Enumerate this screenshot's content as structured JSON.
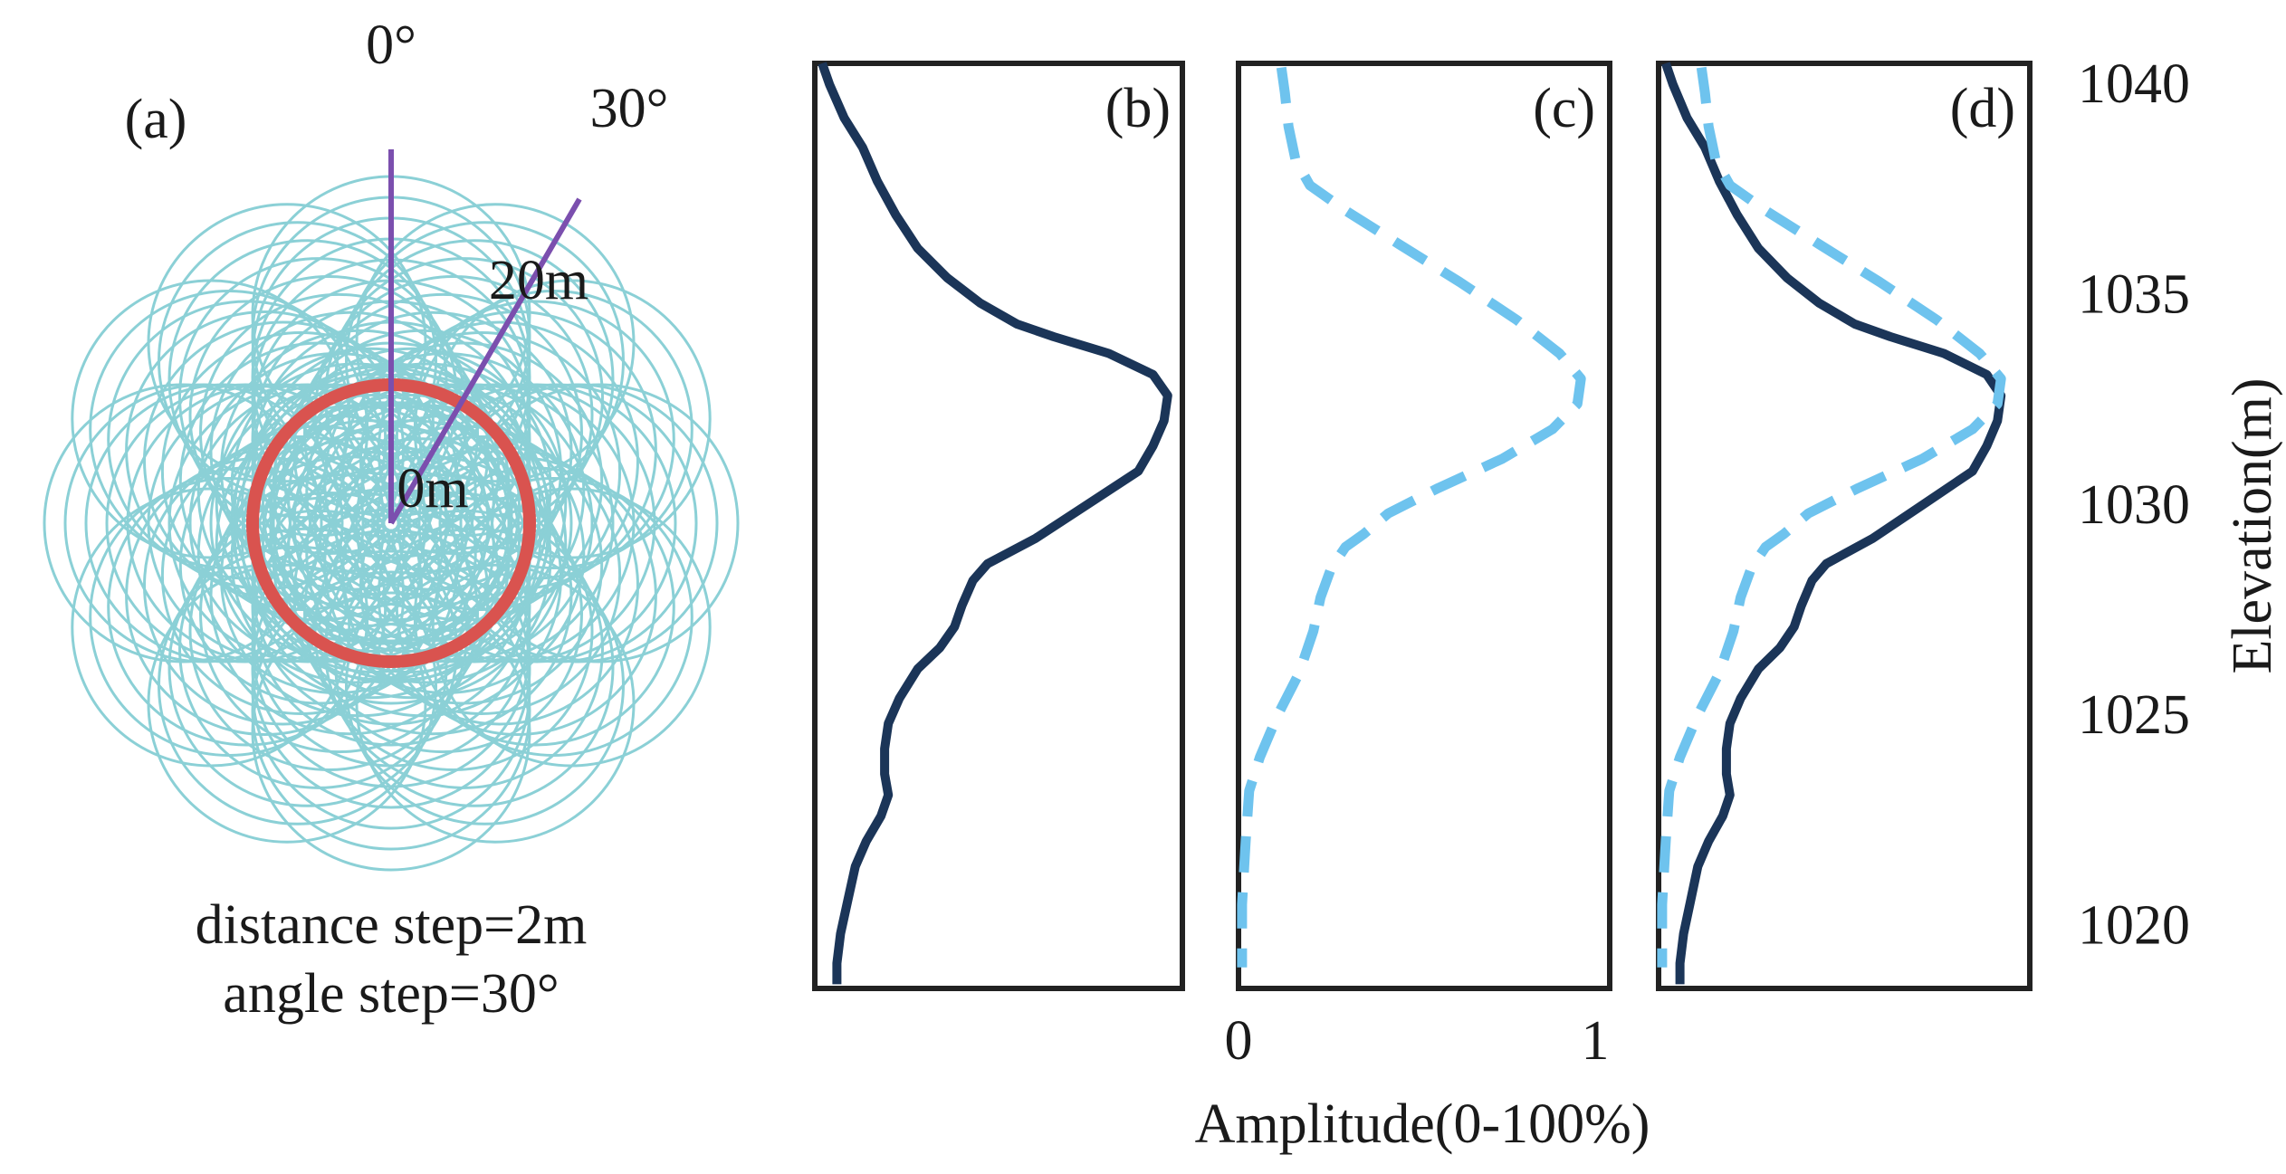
{
  "colors": {
    "background": "#ffffff",
    "circles": "#8bd0d6",
    "red_circle": "#d9534f",
    "ray": "#7b4fae",
    "dark_line": "#1b3558",
    "dashed_line": "#6ec3ee",
    "frame": "#222222",
    "text": "#1a1a1a"
  },
  "panel_a": {
    "label": "(a)",
    "angle_label_0": "0°",
    "angle_label_30": "30°",
    "distance_label_outer": "20m",
    "distance_label_inner": "0m",
    "caption_line1": "distance step=2m",
    "caption_line2": "angle step=30°",
    "max_distance_m": 20,
    "distance_step_m": 2,
    "angle_step_deg": 30,
    "rays_deg": [
      0,
      30
    ]
  },
  "chart_data": [
    {
      "panel": "(b)",
      "type": "line",
      "ylim": [
        1018.5,
        1040.5
      ],
      "xlim": [
        0,
        1
      ],
      "series": [
        {
          "style": "solid",
          "points": [
            [
              0.02,
              1040.5
            ],
            [
              0.04,
              1040.0
            ],
            [
              0.08,
              1039.2
            ],
            [
              0.13,
              1038.5
            ],
            [
              0.17,
              1037.7
            ],
            [
              0.22,
              1036.9
            ],
            [
              0.28,
              1036.1
            ],
            [
              0.36,
              1035.4
            ],
            [
              0.45,
              1034.8
            ],
            [
              0.55,
              1034.3
            ],
            [
              0.65,
              1034.0
            ],
            [
              0.8,
              1033.6
            ],
            [
              0.92,
              1033.1
            ],
            [
              0.96,
              1032.6
            ],
            [
              0.95,
              1032.0
            ],
            [
              0.92,
              1031.4
            ],
            [
              0.88,
              1030.8
            ],
            [
              0.74,
              1030.0
            ],
            [
              0.6,
              1029.2
            ],
            [
              0.47,
              1028.6
            ],
            [
              0.43,
              1028.2
            ],
            [
              0.4,
              1027.6
            ],
            [
              0.38,
              1027.1
            ],
            [
              0.34,
              1026.6
            ],
            [
              0.28,
              1026.1
            ],
            [
              0.23,
              1025.4
            ],
            [
              0.2,
              1024.8
            ],
            [
              0.19,
              1024.2
            ],
            [
              0.19,
              1023.6
            ],
            [
              0.2,
              1023.1
            ],
            [
              0.18,
              1022.6
            ],
            [
              0.14,
              1022.0
            ],
            [
              0.11,
              1021.4
            ],
            [
              0.09,
              1020.6
            ],
            [
              0.07,
              1019.8
            ],
            [
              0.06,
              1019.1
            ],
            [
              0.06,
              1018.6
            ]
          ]
        }
      ]
    },
    {
      "panel": "(c)",
      "type": "line",
      "ylim": [
        1018.5,
        1040.5
      ],
      "xlim": [
        0,
        1
      ],
      "xticks": [
        "0",
        "1"
      ],
      "series": [
        {
          "style": "dashed",
          "points": [
            [
              0.12,
              1040.4
            ],
            [
              0.13,
              1039.8
            ],
            [
              0.14,
              1039.0
            ],
            [
              0.16,
              1038.2
            ],
            [
              0.2,
              1037.6
            ],
            [
              0.3,
              1037.0
            ],
            [
              0.45,
              1036.2
            ],
            [
              0.62,
              1035.3
            ],
            [
              0.78,
              1034.4
            ],
            [
              0.9,
              1033.6
            ],
            [
              0.96,
              1033.0
            ],
            [
              0.95,
              1032.4
            ],
            [
              0.88,
              1031.8
            ],
            [
              0.74,
              1031.1
            ],
            [
              0.56,
              1030.4
            ],
            [
              0.42,
              1029.8
            ],
            [
              0.35,
              1029.3
            ],
            [
              0.3,
              1029.0
            ],
            [
              0.26,
              1028.5
            ],
            [
              0.23,
              1027.8
            ],
            [
              0.21,
              1027.0
            ],
            [
              0.17,
              1026.0
            ],
            [
              0.11,
              1025.0
            ],
            [
              0.06,
              1024.0
            ],
            [
              0.03,
              1023.2
            ],
            [
              0.02,
              1022.0
            ],
            [
              0.01,
              1020.5
            ],
            [
              0.01,
              1019.0
            ]
          ]
        }
      ]
    },
    {
      "panel": "(d)",
      "type": "line",
      "ylim": [
        1018.5,
        1040.5
      ],
      "xlim": [
        0,
        1
      ],
      "ylabel": "Elevation(m)",
      "yticks": [
        1020,
        1025,
        1030,
        1035,
        1040
      ],
      "series": [
        {
          "style": "solid",
          "points": [
            [
              0.02,
              1040.5
            ],
            [
              0.04,
              1040.0
            ],
            [
              0.08,
              1039.2
            ],
            [
              0.13,
              1038.5
            ],
            [
              0.17,
              1037.7
            ],
            [
              0.22,
              1036.9
            ],
            [
              0.28,
              1036.1
            ],
            [
              0.36,
              1035.4
            ],
            [
              0.45,
              1034.8
            ],
            [
              0.55,
              1034.3
            ],
            [
              0.65,
              1034.0
            ],
            [
              0.8,
              1033.6
            ],
            [
              0.92,
              1033.1
            ],
            [
              0.96,
              1032.6
            ],
            [
              0.95,
              1032.0
            ],
            [
              0.92,
              1031.4
            ],
            [
              0.88,
              1030.8
            ],
            [
              0.74,
              1030.0
            ],
            [
              0.6,
              1029.2
            ],
            [
              0.47,
              1028.6
            ],
            [
              0.43,
              1028.2
            ],
            [
              0.4,
              1027.6
            ],
            [
              0.38,
              1027.1
            ],
            [
              0.34,
              1026.6
            ],
            [
              0.28,
              1026.1
            ],
            [
              0.23,
              1025.4
            ],
            [
              0.2,
              1024.8
            ],
            [
              0.19,
              1024.2
            ],
            [
              0.19,
              1023.6
            ],
            [
              0.2,
              1023.1
            ],
            [
              0.18,
              1022.6
            ],
            [
              0.14,
              1022.0
            ],
            [
              0.11,
              1021.4
            ],
            [
              0.09,
              1020.6
            ],
            [
              0.07,
              1019.8
            ],
            [
              0.06,
              1019.1
            ],
            [
              0.06,
              1018.6
            ]
          ]
        },
        {
          "style": "dashed",
          "points": [
            [
              0.12,
              1040.4
            ],
            [
              0.13,
              1039.8
            ],
            [
              0.14,
              1039.0
            ],
            [
              0.16,
              1038.2
            ],
            [
              0.2,
              1037.6
            ],
            [
              0.3,
              1037.0
            ],
            [
              0.45,
              1036.2
            ],
            [
              0.62,
              1035.3
            ],
            [
              0.78,
              1034.4
            ],
            [
              0.9,
              1033.6
            ],
            [
              0.96,
              1033.0
            ],
            [
              0.95,
              1032.4
            ],
            [
              0.88,
              1031.8
            ],
            [
              0.74,
              1031.1
            ],
            [
              0.56,
              1030.4
            ],
            [
              0.42,
              1029.8
            ],
            [
              0.35,
              1029.3
            ],
            [
              0.3,
              1029.0
            ],
            [
              0.26,
              1028.5
            ],
            [
              0.23,
              1027.8
            ],
            [
              0.21,
              1027.0
            ],
            [
              0.17,
              1026.0
            ],
            [
              0.11,
              1025.0
            ],
            [
              0.06,
              1024.0
            ],
            [
              0.03,
              1023.2
            ],
            [
              0.02,
              1022.0
            ],
            [
              0.01,
              1020.5
            ],
            [
              0.01,
              1019.0
            ]
          ]
        }
      ]
    }
  ],
  "xlabel": "Amplitude(0-100%)"
}
